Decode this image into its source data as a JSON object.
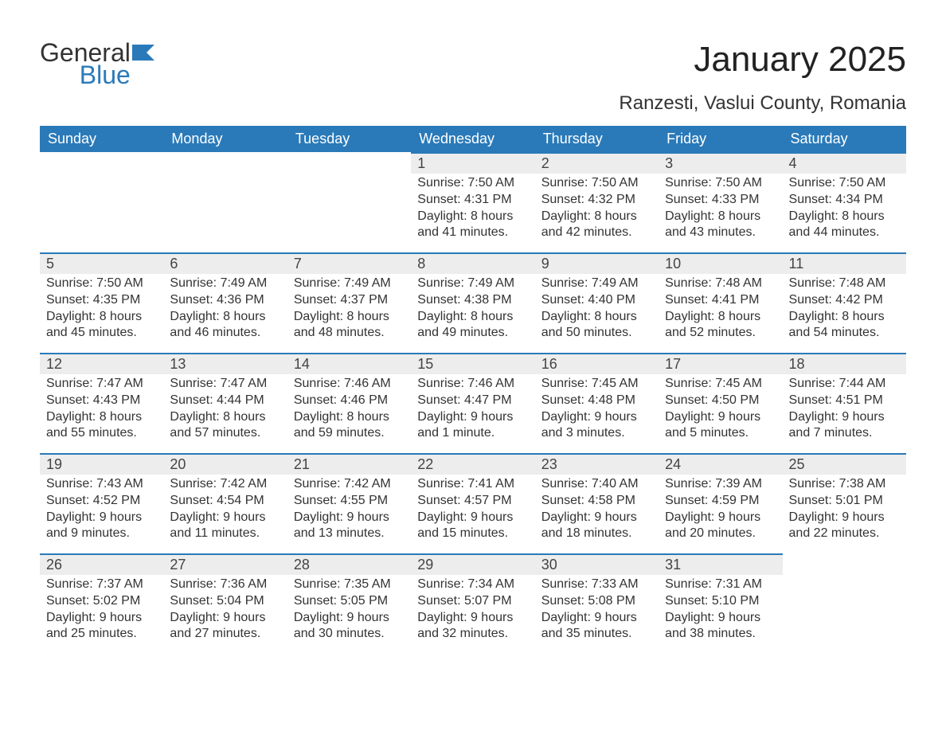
{
  "logo": {
    "text1": "General",
    "text2": "Blue",
    "icon_color": "#2a7ab9"
  },
  "title": "January 2025",
  "subtitle": "Ranzesti, Vaslui County, Romania",
  "colors": {
    "header_bg": "#2a7ab9",
    "header_text": "#ffffff",
    "daynum_bg": "#ededed",
    "daynum_border": "#2a7ab9",
    "body_text": "#333333",
    "page_bg": "#ffffff"
  },
  "weekdays": [
    "Sunday",
    "Monday",
    "Tuesday",
    "Wednesday",
    "Thursday",
    "Friday",
    "Saturday"
  ],
  "weeks": [
    [
      null,
      null,
      null,
      {
        "n": "1",
        "sunrise": "7:50 AM",
        "sunset": "4:31 PM",
        "daylight": "8 hours and 41 minutes."
      },
      {
        "n": "2",
        "sunrise": "7:50 AM",
        "sunset": "4:32 PM",
        "daylight": "8 hours and 42 minutes."
      },
      {
        "n": "3",
        "sunrise": "7:50 AM",
        "sunset": "4:33 PM",
        "daylight": "8 hours and 43 minutes."
      },
      {
        "n": "4",
        "sunrise": "7:50 AM",
        "sunset": "4:34 PM",
        "daylight": "8 hours and 44 minutes."
      }
    ],
    [
      {
        "n": "5",
        "sunrise": "7:50 AM",
        "sunset": "4:35 PM",
        "daylight": "8 hours and 45 minutes."
      },
      {
        "n": "6",
        "sunrise": "7:49 AM",
        "sunset": "4:36 PM",
        "daylight": "8 hours and 46 minutes."
      },
      {
        "n": "7",
        "sunrise": "7:49 AM",
        "sunset": "4:37 PM",
        "daylight": "8 hours and 48 minutes."
      },
      {
        "n": "8",
        "sunrise": "7:49 AM",
        "sunset": "4:38 PM",
        "daylight": "8 hours and 49 minutes."
      },
      {
        "n": "9",
        "sunrise": "7:49 AM",
        "sunset": "4:40 PM",
        "daylight": "8 hours and 50 minutes."
      },
      {
        "n": "10",
        "sunrise": "7:48 AM",
        "sunset": "4:41 PM",
        "daylight": "8 hours and 52 minutes."
      },
      {
        "n": "11",
        "sunrise": "7:48 AM",
        "sunset": "4:42 PM",
        "daylight": "8 hours and 54 minutes."
      }
    ],
    [
      {
        "n": "12",
        "sunrise": "7:47 AM",
        "sunset": "4:43 PM",
        "daylight": "8 hours and 55 minutes."
      },
      {
        "n": "13",
        "sunrise": "7:47 AM",
        "sunset": "4:44 PM",
        "daylight": "8 hours and 57 minutes."
      },
      {
        "n": "14",
        "sunrise": "7:46 AM",
        "sunset": "4:46 PM",
        "daylight": "8 hours and 59 minutes."
      },
      {
        "n": "15",
        "sunrise": "7:46 AM",
        "sunset": "4:47 PM",
        "daylight": "9 hours and 1 minute."
      },
      {
        "n": "16",
        "sunrise": "7:45 AM",
        "sunset": "4:48 PM",
        "daylight": "9 hours and 3 minutes."
      },
      {
        "n": "17",
        "sunrise": "7:45 AM",
        "sunset": "4:50 PM",
        "daylight": "9 hours and 5 minutes."
      },
      {
        "n": "18",
        "sunrise": "7:44 AM",
        "sunset": "4:51 PM",
        "daylight": "9 hours and 7 minutes."
      }
    ],
    [
      {
        "n": "19",
        "sunrise": "7:43 AM",
        "sunset": "4:52 PM",
        "daylight": "9 hours and 9 minutes."
      },
      {
        "n": "20",
        "sunrise": "7:42 AM",
        "sunset": "4:54 PM",
        "daylight": "9 hours and 11 minutes."
      },
      {
        "n": "21",
        "sunrise": "7:42 AM",
        "sunset": "4:55 PM",
        "daylight": "9 hours and 13 minutes."
      },
      {
        "n": "22",
        "sunrise": "7:41 AM",
        "sunset": "4:57 PM",
        "daylight": "9 hours and 15 minutes."
      },
      {
        "n": "23",
        "sunrise": "7:40 AM",
        "sunset": "4:58 PM",
        "daylight": "9 hours and 18 minutes."
      },
      {
        "n": "24",
        "sunrise": "7:39 AM",
        "sunset": "4:59 PM",
        "daylight": "9 hours and 20 minutes."
      },
      {
        "n": "25",
        "sunrise": "7:38 AM",
        "sunset": "5:01 PM",
        "daylight": "9 hours and 22 minutes."
      }
    ],
    [
      {
        "n": "26",
        "sunrise": "7:37 AM",
        "sunset": "5:02 PM",
        "daylight": "9 hours and 25 minutes."
      },
      {
        "n": "27",
        "sunrise": "7:36 AM",
        "sunset": "5:04 PM",
        "daylight": "9 hours and 27 minutes."
      },
      {
        "n": "28",
        "sunrise": "7:35 AM",
        "sunset": "5:05 PM",
        "daylight": "9 hours and 30 minutes."
      },
      {
        "n": "29",
        "sunrise": "7:34 AM",
        "sunset": "5:07 PM",
        "daylight": "9 hours and 32 minutes."
      },
      {
        "n": "30",
        "sunrise": "7:33 AM",
        "sunset": "5:08 PM",
        "daylight": "9 hours and 35 minutes."
      },
      {
        "n": "31",
        "sunrise": "7:31 AM",
        "sunset": "5:10 PM",
        "daylight": "9 hours and 38 minutes."
      },
      null
    ]
  ],
  "labels": {
    "sunrise": "Sunrise: ",
    "sunset": "Sunset: ",
    "daylight": "Daylight: "
  }
}
